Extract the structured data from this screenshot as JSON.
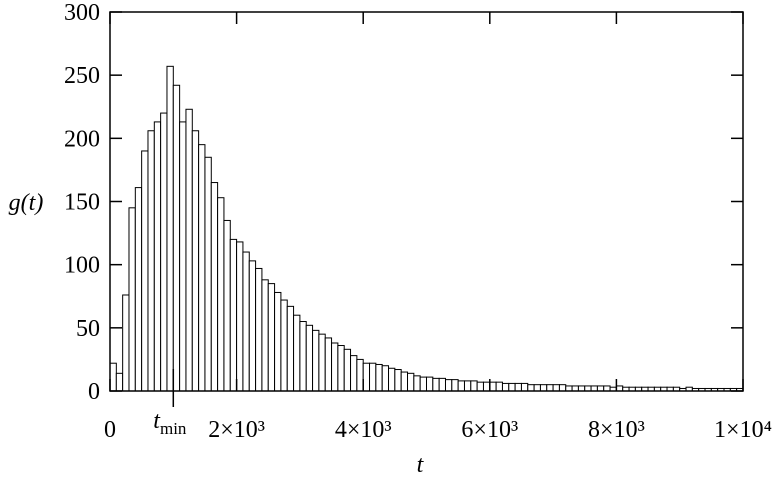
{
  "chart_data": {
    "type": "histogram",
    "xlabel": "t",
    "ylabel": "g(t)",
    "bins": [
      0,
      100,
      200,
      300,
      400,
      500,
      600,
      700,
      800,
      900,
      1000,
      1100,
      1200,
      1300,
      1400,
      1500,
      1600,
      1700,
      1800,
      1900,
      2000,
      2100,
      2200,
      2300,
      2400,
      2500,
      2600,
      2700,
      2800,
      2900,
      3000,
      3100,
      3200,
      3300,
      3400,
      3500,
      3600,
      3700,
      3800,
      3900,
      4000,
      4100,
      4200,
      4300,
      4400,
      4500,
      4600,
      4700,
      4800,
      4900,
      5000,
      5100,
      5200,
      5300,
      5400,
      5500,
      5600,
      5700,
      5800,
      5900,
      6000,
      6100,
      6200,
      6300,
      6400,
      6500,
      6600,
      6700,
      6800,
      6900,
      7000,
      7100,
      7200,
      7300,
      7400,
      7500,
      7600,
      7700,
      7800,
      7900,
      8000,
      8100,
      8200,
      8300,
      8400,
      8500,
      8600,
      8700,
      8800,
      8900,
      9000,
      9100,
      9200,
      9300,
      9400,
      9500,
      9600,
      9700,
      9800,
      9900,
      10000
    ],
    "values": [
      22,
      14,
      76,
      145,
      161,
      190,
      206,
      213,
      220,
      257,
      242,
      213,
      223,
      206,
      195,
      185,
      165,
      153,
      135,
      120,
      118,
      110,
      103,
      97,
      88,
      85,
      78,
      72,
      67,
      60,
      55,
      52,
      48,
      45,
      42,
      38,
      36,
      33,
      28,
      25,
      22,
      22,
      21,
      20,
      18,
      17,
      15,
      14,
      12,
      11,
      11,
      10,
      10,
      9,
      9,
      8,
      8,
      8,
      7,
      7,
      7,
      7,
      6,
      6,
      6,
      6,
      5,
      5,
      5,
      5,
      5,
      5,
      4,
      4,
      4,
      4,
      4,
      4,
      4,
      3,
      4,
      3,
      3,
      3,
      3,
      3,
      3,
      3,
      3,
      3,
      2,
      3,
      2,
      2,
      2,
      2,
      2,
      2,
      2,
      2
    ],
    "color": "#ffffff",
    "xlim": [
      0,
      10000
    ],
    "xticks": [
      0,
      {
        "value": 2000,
        "label": "2×10³"
      },
      {
        "value": 4000,
        "label": "4×10³"
      },
      {
        "value": 6000,
        "label": "6×10³"
      },
      {
        "value": 8000,
        "label": "8×10³"
      },
      {
        "value": 10000,
        "label": "1×10⁴"
      }
    ],
    "ylim": [
      0,
      300
    ],
    "yticks": [
      0,
      50,
      100,
      150,
      200,
      250,
      300
    ],
    "annotation": {
      "text": "t",
      "subscript": "min",
      "x": 1000
    }
  }
}
